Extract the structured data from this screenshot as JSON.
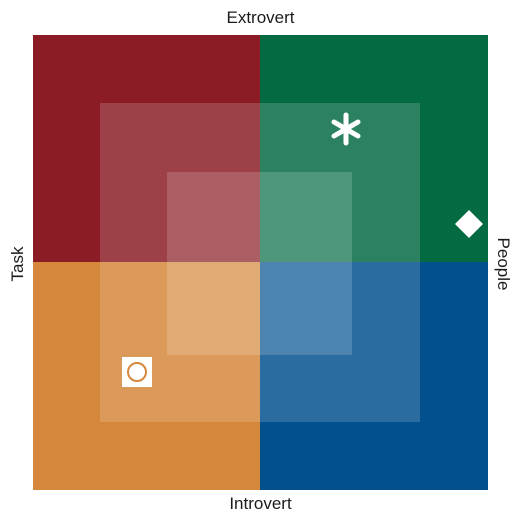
{
  "labels": {
    "top": "Extrovert",
    "bottom": "Introvert",
    "left": "Task",
    "right": "People"
  },
  "quadrants": [
    {
      "position": "top-left",
      "color": "#8b1c25"
    },
    {
      "position": "top-right",
      "color": "#046a42"
    },
    {
      "position": "bottom-left",
      "color": "#d5873b"
    },
    {
      "position": "bottom-right",
      "color": "#03508e"
    }
  ],
  "markers": [
    {
      "icon": "asterisk-icon",
      "quadrant": "top-right"
    },
    {
      "icon": "diamond-icon",
      "quadrant": "top-right"
    },
    {
      "icon": "circle-icon",
      "quadrant": "bottom-left"
    }
  ]
}
